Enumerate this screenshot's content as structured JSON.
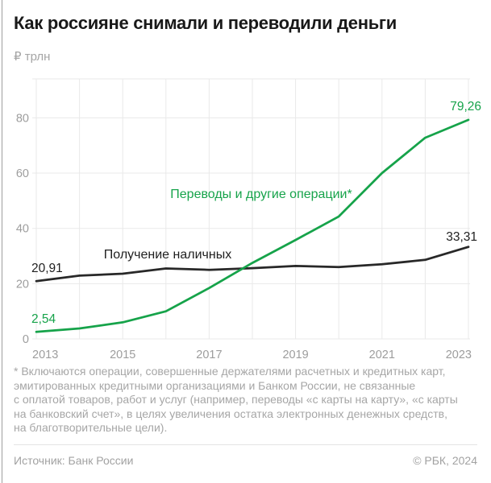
{
  "page": {
    "title": "Как россияне снимали и переводили деньги",
    "unit_label": "₽ трлн",
    "footnote": "* Включаются операции, совершенные держателями расчетных и кредитных карт,\nэмитированных кредитными организациями и Банком России, не связанные\nс оплатой товаров, работ и услуг (например, переводы «с карты на карту», «с карты\nна банковский счет», в целях увеличения остатка электронных денежных средств,\nна благотворительные цели).",
    "source_label": "Источник: Банк России",
    "copyright_label": "© РБК, 2024"
  },
  "colors": {
    "accent_green": "#16a34a",
    "line_dark": "#282828",
    "value_dark": "#1f1f1f",
    "grid": "#e9e9e9",
    "tick": "#9d9d9d"
  },
  "chart_data": {
    "type": "line",
    "title": "Как россияне снимали и переводили деньги",
    "ylabel": "₽ трлн",
    "x": [
      2013,
      2014,
      2015,
      2016,
      2017,
      2018,
      2019,
      2020,
      2021,
      2022,
      2023
    ],
    "x_tick_years": [
      2013,
      2015,
      2017,
      2019,
      2021,
      2023
    ],
    "y_ticks": [
      0,
      20,
      40,
      60,
      80
    ],
    "ylim": [
      0,
      94
    ],
    "grid": true,
    "legend_position": "inline-labels",
    "series": [
      {
        "name": "Получение наличных",
        "color": "#282828",
        "label_color": "#1f1f1f",
        "values": [
          20.91,
          22.9,
          23.6,
          25.5,
          25.0,
          25.6,
          26.4,
          26.0,
          27.0,
          28.6,
          33.31
        ],
        "first_value_label": "20,91",
        "last_value_label": "33,31"
      },
      {
        "name": "Переводы и другие операции*",
        "color": "#16a34a",
        "label_color": "#16a34a",
        "values": [
          2.54,
          3.8,
          6.0,
          10.0,
          18.4,
          27.5,
          35.8,
          44.3,
          60.0,
          72.8,
          79.26
        ],
        "first_value_label": "2,54",
        "last_value_label": "79,26"
      }
    ]
  }
}
